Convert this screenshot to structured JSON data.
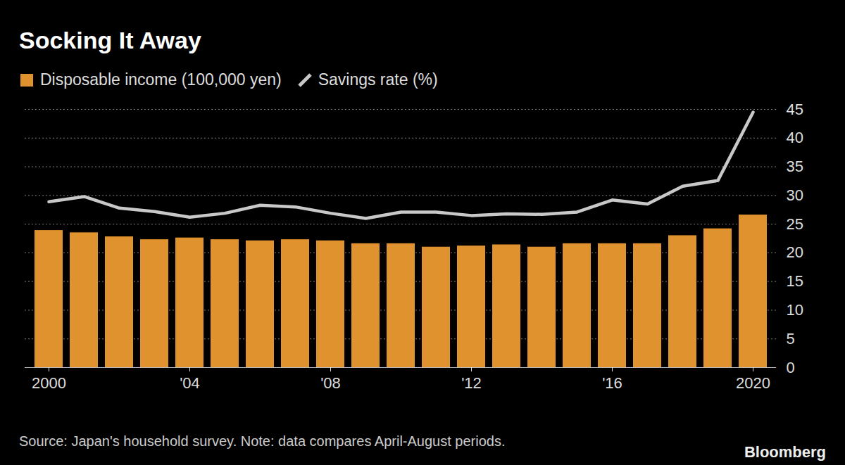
{
  "chart_data": {
    "type": "bar",
    "title": "Socking It Away",
    "caption": "Source: Japan's household survey. Note: data compares April-August periods.",
    "credit": "Bloomberg",
    "categories": [
      "2000",
      null,
      null,
      null,
      "'04",
      null,
      null,
      null,
      "'08",
      null,
      null,
      null,
      "'12",
      null,
      null,
      null,
      "'16",
      null,
      null,
      null,
      "2020"
    ],
    "series": [
      {
        "name": "Disposable income (100,000 yen)",
        "type": "bar",
        "color": "#e0922e",
        "values": [
          23.9,
          23.5,
          22.8,
          22.3,
          22.6,
          22.3,
          22.1,
          22.3,
          22.1,
          21.6,
          21.6,
          21.0,
          21.2,
          21.4,
          21.0,
          21.6,
          21.6,
          21.6,
          23.0,
          24.2,
          26.6
        ]
      },
      {
        "name": "Savings rate (%)",
        "type": "line",
        "color": "#c8c8c8",
        "values": [
          28.9,
          29.8,
          27.8,
          27.2,
          26.2,
          26.9,
          28.3,
          28.0,
          26.9,
          26.0,
          27.1,
          27.1,
          26.5,
          26.8,
          26.7,
          27.1,
          29.2,
          28.5,
          31.6,
          32.6,
          44.5
        ]
      }
    ],
    "ylim": [
      0,
      45
    ],
    "yticks": [
      0,
      5,
      10,
      15,
      20,
      25,
      30,
      35,
      40,
      45
    ],
    "grid": true,
    "legend": "top-left"
  }
}
